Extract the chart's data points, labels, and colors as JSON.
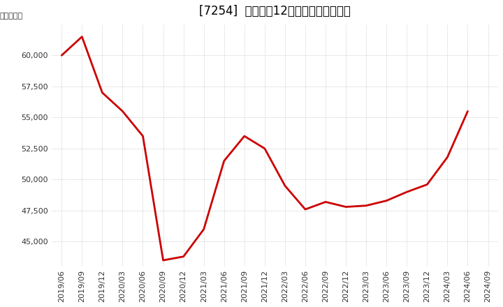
{
  "title": "[7254]  売上高の12か月移動合計の推移",
  "ylabel": "（百万円）",
  "line_color": "#cc0000",
  "line_width": 2.0,
  "background_color": "#ffffff",
  "grid_color": "#bbbbbb",
  "dates": [
    "2019/06",
    "2019/09",
    "2019/12",
    "2020/03",
    "2020/06",
    "2020/09",
    "2020/12",
    "2021/03",
    "2021/06",
    "2021/09",
    "2021/12",
    "2022/03",
    "2022/06",
    "2022/09",
    "2022/12",
    "2023/03",
    "2023/06",
    "2023/09",
    "2023/12",
    "2024/03",
    "2024/06"
  ],
  "values": [
    60000,
    61500,
    57000,
    55500,
    53500,
    43500,
    43800,
    46000,
    51500,
    53500,
    52500,
    49500,
    47600,
    48200,
    47800,
    47900,
    48300,
    49000,
    49600,
    51800,
    55500
  ],
  "yticks": [
    45000,
    47500,
    50000,
    52500,
    55000,
    57500,
    60000
  ],
  "ylim": [
    43000,
    62500
  ],
  "xtick_labels": [
    "2019/06",
    "2019/09",
    "2019/12",
    "2020/03",
    "2020/06",
    "2020/09",
    "2020/12",
    "2021/03",
    "2021/06",
    "2021/09",
    "2021/12",
    "2022/03",
    "2022/06",
    "2022/09",
    "2022/12",
    "2023/03",
    "2023/06",
    "2023/09",
    "2023/12",
    "2024/03",
    "2024/06",
    "2024/09"
  ],
  "title_fontsize": 12,
  "tick_fontsize": 8,
  "ylabel_fontsize": 8
}
